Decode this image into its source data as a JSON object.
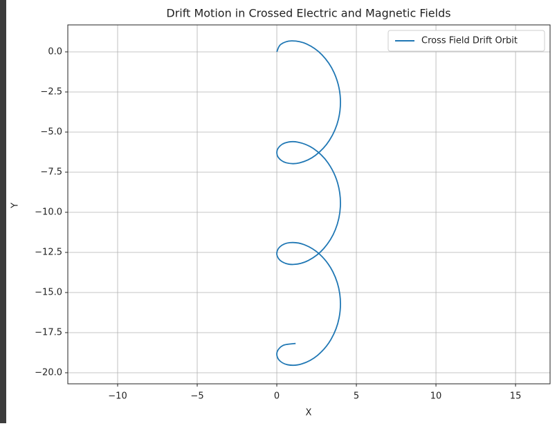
{
  "chart_data": {
    "type": "line",
    "title": "Drift Motion in Crossed Electric and Magnetic Fields",
    "xlabel": "X",
    "ylabel": "Y",
    "xlim": [
      -13.13,
      17.17
    ],
    "ylim": [
      -20.69,
      1.68
    ],
    "xticks": [
      {
        "value": -10,
        "label": "−10"
      },
      {
        "value": -5,
        "label": "−5"
      },
      0,
      5,
      10,
      15
    ],
    "yticks": [
      {
        "value": 0,
        "label": "0.0"
      },
      {
        "value": -2.5,
        "label": "−2.5"
      },
      {
        "value": -5,
        "label": "−5.0"
      },
      {
        "value": -7.5,
        "label": "−7.5"
      },
      {
        "value": -10,
        "label": "−10.0"
      },
      {
        "value": -12.5,
        "label": "−12.5"
      },
      {
        "value": -15,
        "label": "−15.0"
      },
      {
        "value": -17.5,
        "label": "−17.5"
      },
      {
        "value": -20,
        "label": "−20.0"
      }
    ],
    "grid": true,
    "legend": "upper right",
    "series": [
      {
        "name": "Cross Field Drift Orbit",
        "color": "#1f77b4",
        "x": [
          0,
          0.245,
          0.919,
          1.859,
          2.832,
          3.602,
          3.98,
          3.873,
          3.307,
          2.422,
          1.433,
          0.583,
          0.08,
          0.047,
          0.492,
          1.307,
          2.291,
          3.204,
          3.822,
          3.994,
          3.678,
          2.951,
          1.991,
          1.033,
          0.312,
          0.004,
          0.185,
          0.81,
          1.727,
          2.71,
          3.519,
          3.957,
          3.915,
          3.405,
          2.55,
          1.561,
          0.679,
          0.121,
          0.022,
          0.408,
          1.182
        ],
        "values": [
          0,
          0.459,
          0.683,
          0.495,
          -0.181,
          -1.303,
          -2.718,
          -4.202,
          -5.514,
          -6.455,
          -6.918,
          -6.911,
          -6.559,
          -6.07,
          -5.686,
          -5.624,
          -6.021,
          -6.903,
          -8.176,
          -9.65,
          -11.088,
          -12.259,
          -13.0,
          -13.251,
          -13.073,
          -12.633,
          -12.16,
          -11.892,
          -12.019,
          -12.63,
          -13.699,
          -15.086,
          -16.576,
          -17.923,
          -18.923,
          -19.451,
          -19.502,
          -19.184,
          -18.701,
          -18.29,
          -18.175
        ]
      }
    ]
  }
}
